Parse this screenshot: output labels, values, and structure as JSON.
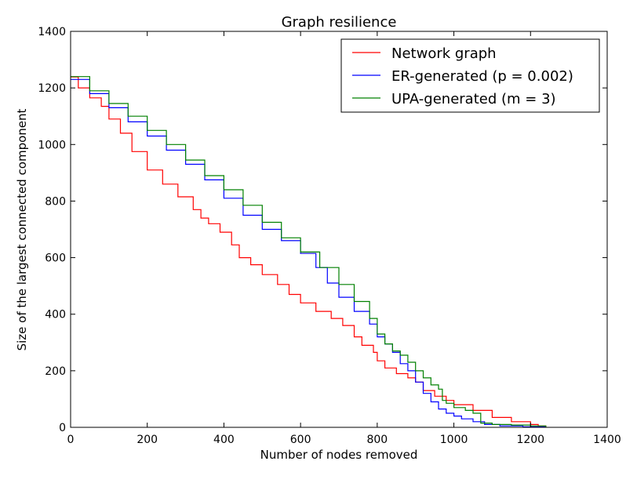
{
  "chart_data": {
    "type": "line",
    "title": "Graph resilience",
    "xlabel": "Number of nodes removed",
    "ylabel": "Size of the largest connected component",
    "xlim": [
      0,
      1400
    ],
    "ylim": [
      0,
      1400
    ],
    "xticks": [
      0,
      200,
      400,
      600,
      800,
      1000,
      1200,
      1400
    ],
    "yticks": [
      0,
      200,
      400,
      600,
      800,
      1000,
      1200,
      1400
    ],
    "grid": false,
    "legend_position": "top-right",
    "series": [
      {
        "name": "Network graph",
        "color": "#ff0000",
        "points": [
          [
            0,
            1239
          ],
          [
            20,
            1200
          ],
          [
            50,
            1165
          ],
          [
            80,
            1135
          ],
          [
            100,
            1090
          ],
          [
            130,
            1040
          ],
          [
            160,
            975
          ],
          [
            200,
            910
          ],
          [
            240,
            860
          ],
          [
            280,
            815
          ],
          [
            320,
            770
          ],
          [
            340,
            740
          ],
          [
            360,
            720
          ],
          [
            390,
            690
          ],
          [
            420,
            645
          ],
          [
            440,
            600
          ],
          [
            470,
            575
          ],
          [
            500,
            540
          ],
          [
            540,
            505
          ],
          [
            570,
            470
          ],
          [
            600,
            440
          ],
          [
            640,
            410
          ],
          [
            680,
            385
          ],
          [
            710,
            360
          ],
          [
            740,
            320
          ],
          [
            760,
            290
          ],
          [
            790,
            265
          ],
          [
            800,
            235
          ],
          [
            820,
            210
          ],
          [
            850,
            190
          ],
          [
            880,
            175
          ],
          [
            900,
            160
          ],
          [
            920,
            130
          ],
          [
            950,
            110
          ],
          [
            980,
            95
          ],
          [
            1000,
            80
          ],
          [
            1050,
            60
          ],
          [
            1100,
            35
          ],
          [
            1150,
            20
          ],
          [
            1200,
            10
          ],
          [
            1220,
            5
          ],
          [
            1240,
            0
          ]
        ]
      },
      {
        "name": "ER-generated (p = 0.002)",
        "color": "#0000ff",
        "points": [
          [
            0,
            1230
          ],
          [
            50,
            1180
          ],
          [
            100,
            1130
          ],
          [
            150,
            1080
          ],
          [
            200,
            1030
          ],
          [
            250,
            980
          ],
          [
            300,
            930
          ],
          [
            350,
            875
          ],
          [
            400,
            810
          ],
          [
            450,
            750
          ],
          [
            500,
            700
          ],
          [
            550,
            660
          ],
          [
            600,
            615
          ],
          [
            640,
            565
          ],
          [
            670,
            510
          ],
          [
            700,
            460
          ],
          [
            740,
            410
          ],
          [
            780,
            365
          ],
          [
            800,
            320
          ],
          [
            820,
            295
          ],
          [
            840,
            265
          ],
          [
            860,
            225
          ],
          [
            880,
            200
          ],
          [
            900,
            160
          ],
          [
            920,
            120
          ],
          [
            940,
            90
          ],
          [
            960,
            65
          ],
          [
            980,
            50
          ],
          [
            1000,
            40
          ],
          [
            1020,
            30
          ],
          [
            1050,
            20
          ],
          [
            1080,
            10
          ],
          [
            1120,
            5
          ],
          [
            1180,
            2
          ],
          [
            1240,
            0
          ]
        ]
      },
      {
        "name": "UPA-generated (m = 3)",
        "color": "#008000",
        "points": [
          [
            0,
            1240
          ],
          [
            50,
            1190
          ],
          [
            100,
            1145
          ],
          [
            150,
            1100
          ],
          [
            200,
            1050
          ],
          [
            250,
            1000
          ],
          [
            300,
            945
          ],
          [
            350,
            890
          ],
          [
            400,
            840
          ],
          [
            450,
            785
          ],
          [
            500,
            725
          ],
          [
            550,
            670
          ],
          [
            600,
            620
          ],
          [
            650,
            565
          ],
          [
            700,
            505
          ],
          [
            740,
            445
          ],
          [
            780,
            385
          ],
          [
            800,
            330
          ],
          [
            820,
            295
          ],
          [
            840,
            270
          ],
          [
            860,
            255
          ],
          [
            880,
            230
          ],
          [
            900,
            200
          ],
          [
            920,
            175
          ],
          [
            940,
            150
          ],
          [
            960,
            135
          ],
          [
            970,
            95
          ],
          [
            980,
            85
          ],
          [
            1000,
            70
          ],
          [
            1030,
            60
          ],
          [
            1050,
            50
          ],
          [
            1070,
            15
          ],
          [
            1100,
            10
          ],
          [
            1150,
            8
          ],
          [
            1200,
            5
          ],
          [
            1240,
            0
          ]
        ]
      }
    ]
  }
}
